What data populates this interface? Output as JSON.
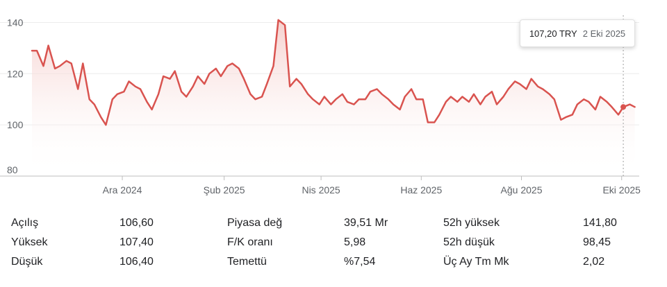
{
  "tooltip": {
    "price": "107,20 TRY",
    "date": "2 Eki 2025"
  },
  "chart_data": {
    "type": "area",
    "line_color": "#d9534f",
    "fill_color": "#f6d6d4",
    "ylim": [
      80,
      145
    ],
    "y_ticks": [
      "80",
      "100",
      "120",
      "140"
    ],
    "y_tick_values": [
      80,
      100,
      120,
      140
    ],
    "x_ticks": [
      {
        "label": "Ara 2024",
        "value": "2024-12-01"
      },
      {
        "label": "Şub 2025",
        "value": "2025-02-01"
      },
      {
        "label": "Nis 2025",
        "value": "2025-04-01"
      },
      {
        "label": "Haz 2025",
        "value": "2025-06-01"
      },
      {
        "label": "Ağu 2025",
        "value": "2025-08-01"
      },
      {
        "label": "Eki 2025",
        "value": "2025-10-01"
      }
    ],
    "x_range": [
      "2024-10-07",
      "2025-10-10"
    ],
    "hover_date": "2025-10-02",
    "series": [
      {
        "x": [
          "2024-10-07",
          "2024-10-10",
          "2024-10-14",
          "2024-10-17",
          "2024-10-21",
          "2024-10-24",
          "2024-10-28",
          "2024-10-31",
          "2024-11-04",
          "2024-11-07",
          "2024-11-11",
          "2024-11-14",
          "2024-11-18",
          "2024-11-21",
          "2024-11-25",
          "2024-11-28",
          "2024-12-02",
          "2024-12-05",
          "2024-12-09",
          "2024-12-12",
          "2024-12-16",
          "2024-12-19",
          "2024-12-23",
          "2024-12-26",
          "2024-12-30",
          "2025-01-02",
          "2025-01-06",
          "2025-01-09",
          "2025-01-13",
          "2025-01-16",
          "2025-01-20",
          "2025-01-23",
          "2025-01-27",
          "2025-01-30",
          "2025-02-03",
          "2025-02-06",
          "2025-02-10",
          "2025-02-13",
          "2025-02-17",
          "2025-02-20",
          "2025-02-24",
          "2025-02-27",
          "2025-03-03",
          "2025-03-06",
          "2025-03-10",
          "2025-03-13",
          "2025-03-17",
          "2025-03-20",
          "2025-03-24",
          "2025-03-27",
          "2025-03-31",
          "2025-04-03",
          "2025-04-07",
          "2025-04-10",
          "2025-04-14",
          "2025-04-17",
          "2025-04-21",
          "2025-04-24",
          "2025-04-28",
          "2025-05-01",
          "2025-05-05",
          "2025-05-08",
          "2025-05-12",
          "2025-05-15",
          "2025-05-19",
          "2025-05-22",
          "2025-05-26",
          "2025-05-29",
          "2025-06-02",
          "2025-06-05",
          "2025-06-09",
          "2025-06-12",
          "2025-06-16",
          "2025-06-19",
          "2025-06-23",
          "2025-06-26",
          "2025-06-30",
          "2025-07-03",
          "2025-07-07",
          "2025-07-10",
          "2025-07-14",
          "2025-07-17",
          "2025-07-21",
          "2025-07-24",
          "2025-07-28",
          "2025-07-31",
          "2025-08-04",
          "2025-08-07",
          "2025-08-11",
          "2025-08-14",
          "2025-08-18",
          "2025-08-21",
          "2025-08-25",
          "2025-08-28",
          "2025-09-01",
          "2025-09-04",
          "2025-09-08",
          "2025-09-11",
          "2025-09-15",
          "2025-09-18",
          "2025-09-22",
          "2025-09-25",
          "2025-09-29",
          "2025-10-02",
          "2025-10-06",
          "2025-10-09"
        ],
        "y": [
          129,
          129,
          123,
          131,
          122,
          123,
          125,
          124,
          114,
          124,
          110,
          108,
          103,
          100,
          110,
          112,
          113,
          117,
          115,
          114,
          109,
          106,
          112,
          119,
          118,
          121,
          113,
          111,
          115,
          119,
          116,
          120,
          122,
          119,
          123,
          124,
          122,
          118,
          112,
          110,
          111,
          116,
          123,
          141,
          139,
          115,
          118,
          116,
          112,
          110,
          108,
          111,
          108,
          110,
          112,
          109,
          108,
          110,
          110,
          113,
          114,
          112,
          110,
          108,
          106,
          111,
          114,
          110,
          110,
          101,
          101,
          104,
          109,
          111,
          109,
          111,
          109,
          112,
          108,
          111,
          113,
          108,
          111,
          114,
          117,
          116,
          114,
          118,
          115,
          114,
          112,
          110,
          102,
          103,
          104,
          108,
          110,
          109,
          106,
          111,
          109,
          107,
          104,
          107,
          108,
          107
        ]
      }
    ]
  },
  "stats": {
    "col1": [
      {
        "label": "Açılış",
        "value": "106,60"
      },
      {
        "label": "Yüksek",
        "value": "107,40"
      },
      {
        "label": "Düşük",
        "value": "106,40"
      }
    ],
    "col2": [
      {
        "label": "Piyasa değ",
        "value": "39,51 Mr"
      },
      {
        "label": "F/K oranı",
        "value": "5,98"
      },
      {
        "label": "Temettü",
        "value": "%7,54"
      }
    ],
    "col3": [
      {
        "label": "52h yüksek",
        "value": "141,80"
      },
      {
        "label": "52h düşük",
        "value": "98,45"
      },
      {
        "label": "Üç Ay Tm Mk",
        "value": "2,02"
      }
    ]
  }
}
